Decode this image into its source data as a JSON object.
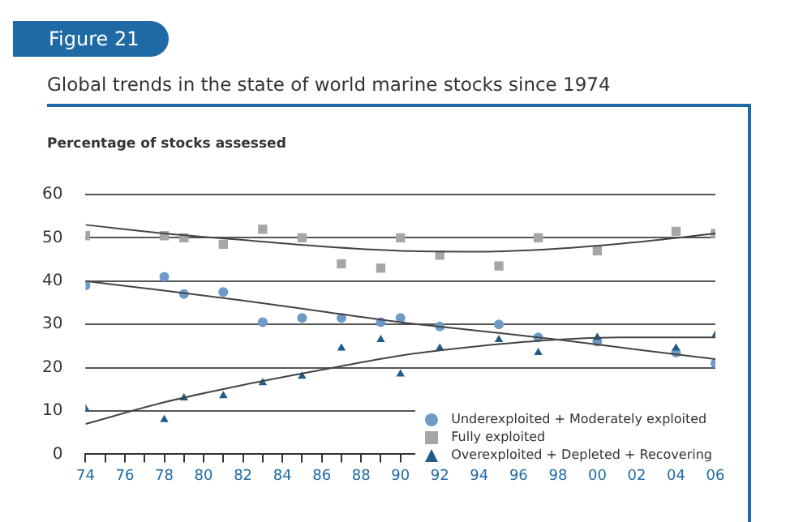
{
  "chart_data": {
    "type": "scatter",
    "title": "Global trends in the state of world marine stocks since 1974",
    "ylabel": "Percentage of stocks assessed",
    "annotations": [
      "Figure 21"
    ],
    "xlim": [
      1974,
      2006
    ],
    "xticks": [
      {
        "value": 1974,
        "label": "74"
      },
      {
        "value": 1975,
        "label": null
      },
      {
        "value": 1976,
        "label": "76"
      },
      {
        "value": 1977,
        "label": null
      },
      {
        "value": 1978,
        "label": "78"
      },
      {
        "value": 1979,
        "label": null
      },
      {
        "value": 1980,
        "label": "80"
      },
      {
        "value": 1981,
        "label": null
      },
      {
        "value": 1982,
        "label": "82"
      },
      {
        "value": 1983,
        "label": null
      },
      {
        "value": 1984,
        "label": "84"
      },
      {
        "value": 1985,
        "label": null
      },
      {
        "value": 1986,
        "label": "86"
      },
      {
        "value": 1987,
        "label": null
      },
      {
        "value": 1988,
        "label": "88"
      },
      {
        "value": 1989,
        "label": null
      },
      {
        "value": 1990,
        "label": "90"
      },
      {
        "value": 1991,
        "label": null
      },
      {
        "value": 1992,
        "label": "92"
      },
      {
        "value": 1993,
        "label": null
      },
      {
        "value": 1994,
        "label": "94"
      },
      {
        "value": 1995,
        "label": null
      },
      {
        "value": 1996,
        "label": "96"
      },
      {
        "value": 1997,
        "label": null
      },
      {
        "value": 1998,
        "label": "98"
      },
      {
        "value": 1999,
        "label": null
      },
      {
        "value": 2000,
        "label": "00"
      },
      {
        "value": 2001,
        "label": null
      },
      {
        "value": 2002,
        "label": "02"
      },
      {
        "value": 2003,
        "label": null
      },
      {
        "value": 2004,
        "label": "04"
      },
      {
        "value": 2005,
        "label": null
      },
      {
        "value": 2006,
        "label": "06"
      }
    ],
    "ylim": [
      0,
      60
    ],
    "yticks": [
      0,
      10,
      20,
      30,
      40,
      50,
      60
    ],
    "grid": "y",
    "legend": "bottom right",
    "x": [
      1974,
      1978,
      1979,
      1981,
      1983,
      1985,
      1987,
      1989,
      1990,
      1992,
      1995,
      1997,
      2000,
      2004,
      2006
    ],
    "series": [
      {
        "name": "Underexploited + Moderately exploited",
        "color": "#6f9ac8",
        "marker": "circle",
        "values": [
          39,
          41,
          37,
          37.5,
          30.5,
          31.5,
          31.5,
          30.5,
          31.5,
          29.5,
          30,
          27,
          26,
          23.5,
          21
        ]
      },
      {
        "name": "Fully exploited",
        "color": "#a6a6a6",
        "marker": "square",
        "values": [
          50.5,
          50.5,
          50,
          48.5,
          52,
          50,
          44,
          43,
          50,
          46,
          43.5,
          50,
          47,
          51.5,
          51
        ]
      },
      {
        "name": "Overexploited + Depleted + Recovering",
        "color": "#1f5c8a",
        "marker": "triangle",
        "values": [
          10.5,
          8,
          13,
          13.5,
          16.5,
          18,
          24.5,
          26.5,
          18.5,
          24.5,
          26.5,
          23.5,
          27,
          24.5,
          27.5
        ]
      },
      {
        "type": "line",
        "color": "#444444",
        "marker": "none",
        "x": [
          1974,
          1978,
          1982,
          1986,
          1990,
          1994,
          1998,
          2002,
          2006
        ],
        "values": [
          40,
          37.8,
          35.5,
          33,
          30.5,
          28.5,
          26.5,
          24.2,
          22
        ]
      },
      {
        "type": "line",
        "color": "#444444",
        "marker": "none",
        "x": [
          1974,
          1978,
          1982,
          1986,
          1990,
          1994,
          1998,
          2002,
          2006
        ],
        "values": [
          53,
          51,
          49.5,
          48,
          47,
          46.8,
          47.5,
          49,
          51
        ]
      },
      {
        "type": "line",
        "color": "#444444",
        "marker": "none",
        "x": [
          1974,
          1978,
          1982,
          1986,
          1990,
          1994,
          1998,
          2002,
          2006
        ],
        "values": [
          7,
          12,
          16,
          19.5,
          22.8,
          25,
          26.5,
          27,
          27
        ]
      }
    ]
  }
}
